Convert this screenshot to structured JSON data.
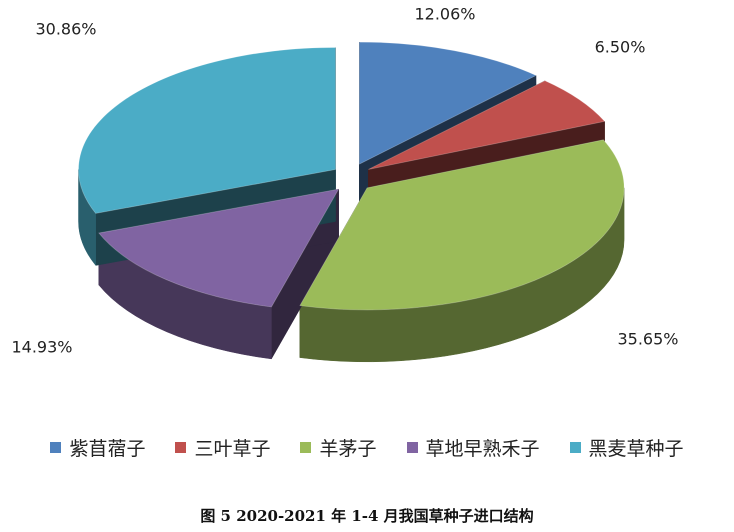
{
  "chart_data": {
    "type": "pie",
    "title": "",
    "style": "3d-exploded",
    "legend_position": "bottom",
    "slices": [
      {
        "name": "紫苜蓿子",
        "value": 12.06,
        "label": "12.06%",
        "color": "#4f81bd"
      },
      {
        "name": "三叶草子",
        "value": 6.5,
        "label": "6.50%",
        "color": "#c0504d"
      },
      {
        "name": "羊茅子",
        "value": 35.65,
        "label": "35.65%",
        "color": "#9bbb59"
      },
      {
        "name": "草地早熟禾子",
        "value": 14.93,
        "label": "14.93%",
        "color": "#8064a2"
      },
      {
        "name": "黑麦草种子",
        "value": 30.86,
        "label": "30.86%",
        "color": "#4bacc6"
      }
    ]
  },
  "caption": "图 5    2020-2021 年 1-4 月我国草种子进口结构"
}
